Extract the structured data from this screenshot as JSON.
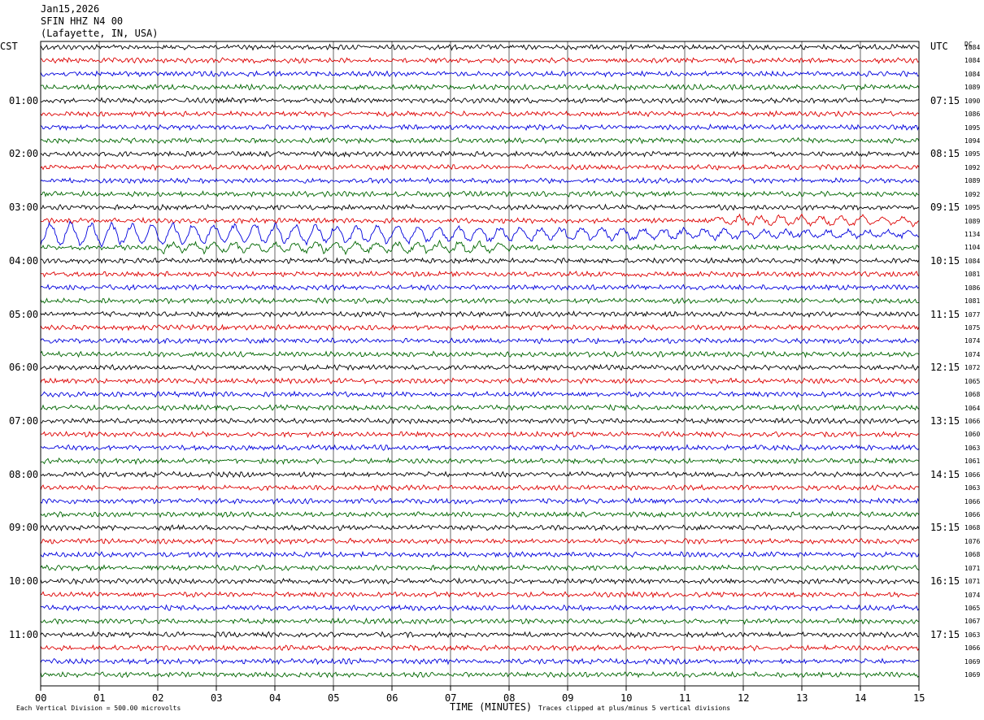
{
  "header": {
    "date": "Jan15,2026",
    "station": "SFIN HHZ N4 00",
    "location": "(Lafayette, IN, USA)"
  },
  "left_timezone": "CST",
  "right_timezone": "UTC",
  "corner_label": "DC",
  "left_hour_labels": [
    "01:00",
    "02:00",
    "03:00",
    "04:00",
    "05:00",
    "06:00",
    "07:00",
    "08:00",
    "09:00",
    "10:00",
    "11:00"
  ],
  "right_hour_labels": [
    "07:15",
    "08:15",
    "09:15",
    "10:15",
    "11:15",
    "12:15",
    "13:15",
    "14:15",
    "15:15",
    "16:15",
    "17:15"
  ],
  "trace_bias": [
    "1084",
    "1084",
    "1084",
    "1089",
    "1090",
    "1086",
    "1095",
    "1094",
    "1095",
    "1092",
    "1089",
    "1092",
    "1095",
    "1089",
    "1134",
    "1104",
    "1084",
    "1081",
    "1086",
    "1081",
    "1077",
    "1075",
    "1074",
    "1074",
    "1072",
    "1065",
    "1068",
    "1064",
    "1066",
    "1060",
    "1063",
    "1061",
    "1066",
    "1063",
    "1066",
    "1066",
    "1068",
    "1076",
    "1068",
    "1071",
    "1071",
    "1074",
    "1065",
    "1067",
    "1063",
    "1066",
    "1069",
    "1069"
  ],
  "footer": {
    "scale_note": "Each Vertical Division =  500.00 microvolts",
    "clip_note": "Traces clipped at plus/minus 5 vertical divisions"
  },
  "chart_data": {
    "type": "line",
    "subtype": "helicorder",
    "title": "Jan15,2026",
    "xlabel": "TIME (MINUTES)",
    "x_tick_labels": [
      "00",
      "01",
      "02",
      "03",
      "04",
      "05",
      "06",
      "07",
      "08",
      "09",
      "10",
      "11",
      "12",
      "13",
      "14",
      "15"
    ],
    "xlim": [
      0,
      15
    ],
    "grid": true,
    "rows_per_hour": 4,
    "row_count": 48,
    "trace_colors": [
      "#000000",
      "#dd0000",
      "#0000dd",
      "#006600"
    ],
    "events": [
      {
        "row": 13,
        "x_start": 11.5,
        "x_end": 15,
        "amplitude": "moderate"
      },
      {
        "row": 14,
        "x_start": 0,
        "x_end": 15,
        "amplitude": "large"
      },
      {
        "row": 15,
        "x_start": 2,
        "x_end": 8,
        "amplitude": "moderate"
      }
    ]
  }
}
